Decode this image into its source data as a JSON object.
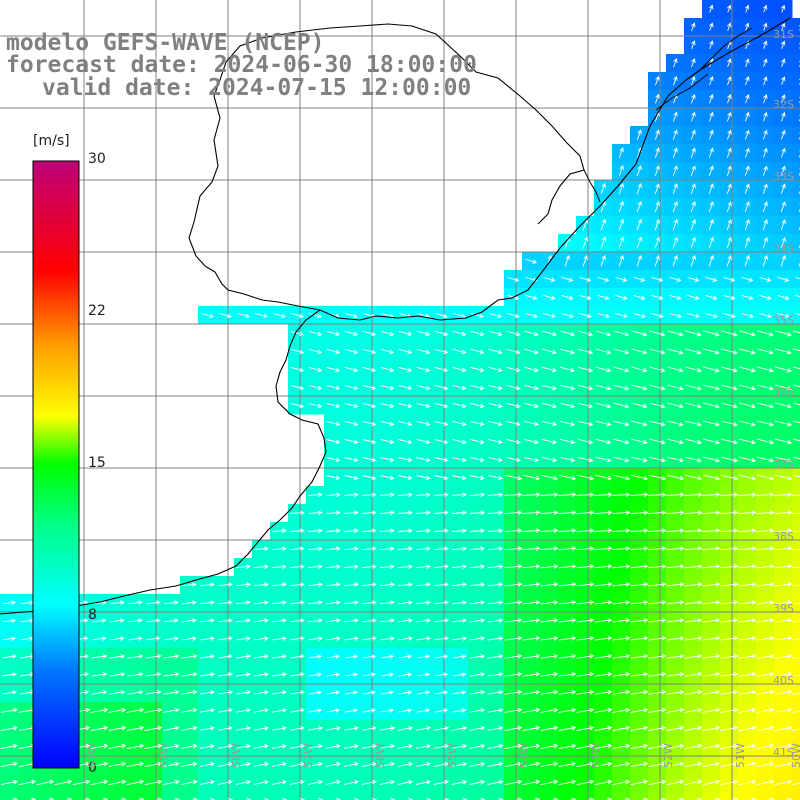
{
  "titles": {
    "line1": "modelo GEFS-WAVE (NCEP)",
    "line2": "forecast date: 2024-06-30 18:00:00",
    "line3": "valid date: 2024-07-15 12:00:00"
  },
  "colorbar": {
    "unit": "[m/s]",
    "ticks": [
      "0",
      "8",
      "15",
      "22",
      "30"
    ],
    "range": [
      0,
      30
    ],
    "stops": [
      "#0000ff",
      "#00aaff",
      "#00ffff",
      "#00ff00",
      "#ffff00",
      "#ff8000",
      "#ff0000",
      "#c0007a"
    ]
  },
  "lat_labels": [
    "31S",
    "32S",
    "33S",
    "34S",
    "35S",
    "36S",
    "37S",
    "38S",
    "39S",
    "40S",
    "41S"
  ],
  "lon_labels": [
    "60W",
    "59W",
    "58W",
    "57W",
    "56W",
    "55W",
    "54W",
    "53W",
    "52W",
    "51W",
    "50W"
  ],
  "colors": {
    "land": "#ffffff",
    "grid": "#808080",
    "coast": "#000000",
    "arrow": "#ffffff",
    "title": "#808080"
  }
}
